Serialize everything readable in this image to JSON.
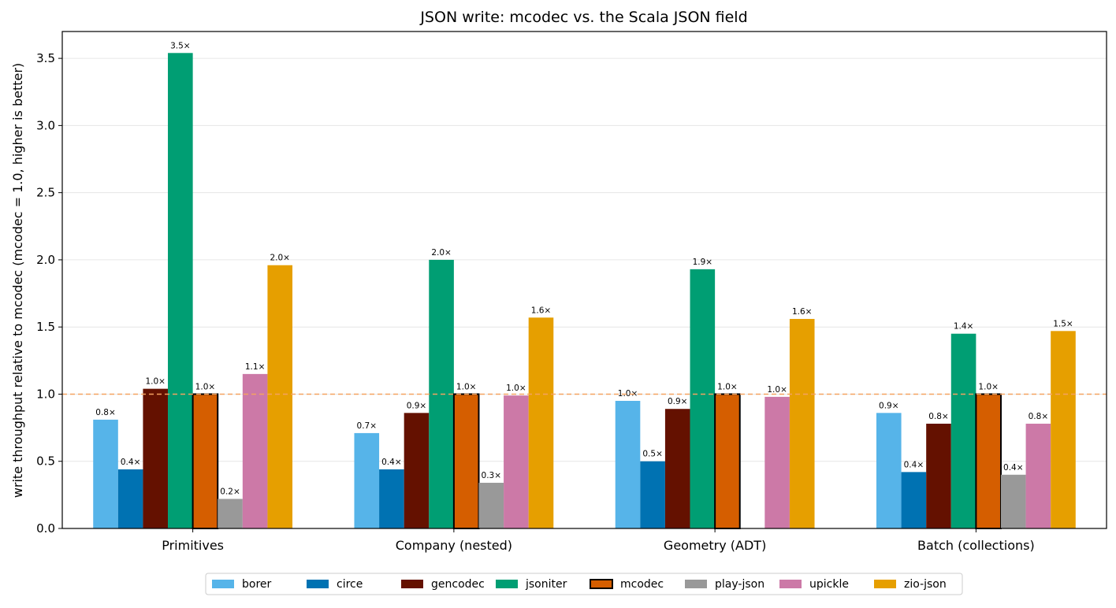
{
  "chart_data": {
    "type": "bar",
    "title": "JSON write: mcodec vs. the Scala JSON field",
    "xlabel": "",
    "ylabel": "write throughput relative to mcodec  (mcodec = 1.0, higher is better)",
    "ylim": [
      0,
      3.7
    ],
    "yticks": [
      "0.0",
      "0.5",
      "1.0",
      "1.5",
      "2.0",
      "2.5",
      "3.0",
      "3.5"
    ],
    "grid": "horizontal",
    "reference_line": 1.0,
    "legend_position": "bottom-center",
    "categories": [
      "Primitives",
      "Company (nested)",
      "Geometry (ADT)",
      "Batch (collections)"
    ],
    "series": [
      {
        "name": "borer",
        "color": "#56B4E9",
        "values": [
          0.81,
          0.71,
          0.95,
          0.86
        ],
        "labels": [
          "0.8×",
          "0.7×",
          "1.0×",
          "0.9×"
        ]
      },
      {
        "name": "circe",
        "color": "#0072B2",
        "values": [
          0.44,
          0.44,
          0.5,
          0.42
        ],
        "labels": [
          "0.4×",
          "0.4×",
          "0.5×",
          "0.4×"
        ]
      },
      {
        "name": "gencodec",
        "color": "#641100",
        "values": [
          1.04,
          0.86,
          0.89,
          0.78
        ],
        "labels": [
          "1.0×",
          "0.9×",
          "0.9×",
          "0.8×"
        ]
      },
      {
        "name": "jsoniter",
        "color": "#009E73",
        "values": [
          3.54,
          2.0,
          1.93,
          1.45
        ],
        "labels": [
          "3.5×",
          "2.0×",
          "1.9×",
          "1.4×"
        ]
      },
      {
        "name": "mcodec",
        "color": "#D55E00",
        "highlight": true,
        "values": [
          1.0,
          1.0,
          1.0,
          1.0
        ],
        "labels": [
          "1.0×",
          "1.0×",
          "1.0×",
          "1.0×"
        ]
      },
      {
        "name": "play-json",
        "color": "#999999",
        "values": [
          0.22,
          0.34,
          null,
          0.4
        ],
        "labels": [
          "0.2×",
          "0.3×",
          "",
          "0.4×"
        ]
      },
      {
        "name": "upickle",
        "color": "#CC79A7",
        "values": [
          1.15,
          0.99,
          0.98,
          0.78
        ],
        "labels": [
          "1.1×",
          "1.0×",
          "1.0×",
          "0.8×"
        ]
      },
      {
        "name": "zio-json",
        "color": "#E69F00",
        "values": [
          1.96,
          1.57,
          1.56,
          1.47
        ],
        "labels": [
          "2.0×",
          "1.6×",
          "1.6×",
          "1.5×"
        ]
      }
    ]
  }
}
